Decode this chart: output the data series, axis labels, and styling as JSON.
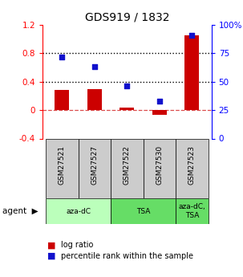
{
  "title": "GDS919 / 1832",
  "samples": [
    "GSM27521",
    "GSM27527",
    "GSM27522",
    "GSM27530",
    "GSM27523"
  ],
  "log_ratios": [
    0.28,
    0.3,
    0.03,
    -0.07,
    1.05
  ],
  "percentile_ranks": [
    72,
    63,
    46,
    33,
    91
  ],
  "ylim_left": [
    -0.4,
    1.2
  ],
  "ylim_right": [
    0,
    100
  ],
  "bar_color": "#cc0000",
  "dot_color": "#1111cc",
  "yticks_left": [
    -0.4,
    0.0,
    0.4,
    0.8,
    1.2
  ],
  "ytick_labels_left": [
    "-0.4",
    "0",
    "0.4",
    "0.8",
    "1.2"
  ],
  "yticks_right": [
    0,
    25,
    50,
    75,
    100
  ],
  "ytick_labels_right": [
    "0",
    "25",
    "50",
    "75",
    "100%"
  ],
  "hlines": [
    0.4,
    0.8
  ],
  "zero_line_y": 0.0,
  "agent_label": "agent",
  "legend_red": "log ratio",
  "legend_blue": "percentile rank within the sample",
  "bg_gray": "#cccccc",
  "title_fontsize": 10,
  "tick_fontsize": 7.5,
  "label_fontsize": 6.5,
  "bar_width": 0.45,
  "groups": [
    {
      "label": "aza-dC",
      "start": 0,
      "end": 2,
      "color": "#bbffbb"
    },
    {
      "label": "TSA",
      "start": 2,
      "end": 4,
      "color": "#66dd66"
    },
    {
      "label": "aza-dC,\nTSA",
      "start": 4,
      "end": 5,
      "color": "#66dd66"
    }
  ]
}
